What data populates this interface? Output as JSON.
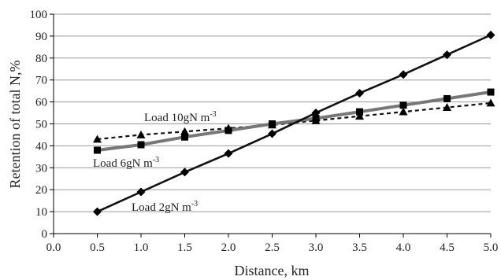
{
  "chart_data": {
    "type": "line",
    "xlabel": "Distance, km",
    "ylabel": "Retention of total N,%",
    "xlim": [
      0.0,
      5.0
    ],
    "ylim": [
      0,
      100
    ],
    "x_ticks": [
      "0.0",
      "0.5",
      "1.0",
      "1.5",
      "2.0",
      "2.5",
      "3.0",
      "3.5",
      "4.0",
      "4.5",
      "5.0"
    ],
    "y_ticks": [
      "0",
      "10",
      "20",
      "30",
      "40",
      "50",
      "60",
      "70",
      "80",
      "90",
      "100"
    ],
    "grid": "horizontal",
    "x": [
      0.5,
      1.0,
      1.5,
      2.0,
      2.5,
      3.0,
      3.5,
      4.0,
      4.5,
      5.0
    ],
    "series": [
      {
        "name": "Load 2gN m-3",
        "marker": "diamond",
        "line": "solid-black",
        "values": [
          10,
          19,
          28,
          36.5,
          45.5,
          55,
          64,
          72.5,
          81.5,
          90.5
        ]
      },
      {
        "name": "Load 6gN m-3",
        "marker": "square",
        "line": "solid-gray",
        "values": [
          38,
          40.5,
          44,
          47,
          50,
          52.5,
          55.5,
          58.5,
          61.5,
          64.5
        ]
      },
      {
        "name": "Load 10gN m-3",
        "marker": "triangle",
        "line": "dashed-black",
        "values": [
          43,
          45,
          46.5,
          48,
          49.5,
          51.5,
          53.5,
          55.5,
          57.5,
          59.5
        ]
      }
    ]
  },
  "annotations": {
    "load2": {
      "main": "Load 2gN m",
      "sup": "-3"
    },
    "load6": {
      "main": "Load 6gN m",
      "sup": "-3"
    },
    "load10": {
      "main": "Load 10gN m",
      "sup": "-3"
    }
  }
}
